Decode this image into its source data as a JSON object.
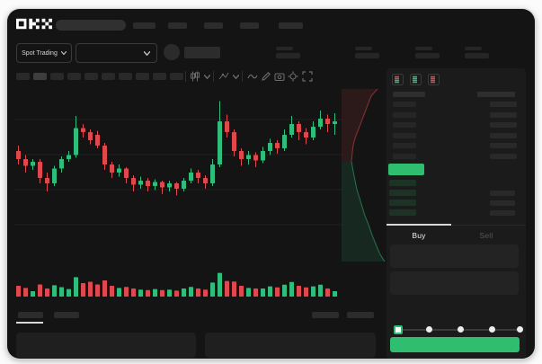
{
  "app": {
    "name": "OKX trading terminal",
    "theme": "dark"
  },
  "colors": {
    "window_bg": "#141414",
    "orderbook_bg": "#1b1b1b",
    "up_green": "#2ebd7b",
    "down_red": "#e0484e",
    "button_green": "#2fbd70",
    "placeholder_bar": "#2c2c2c",
    "tab_underline": "#d8d8d8"
  },
  "header": {
    "logo": "OKX",
    "nav_item_count": 5
  },
  "subheader": {
    "market_type_selector": {
      "label": "Spot Trading"
    },
    "pair_selector": {
      "selected_label": ""
    },
    "ticker_stat_count": 4
  },
  "chart_toolbar": {
    "timeframe_button_count": 10,
    "active_timeframe_index": 1,
    "icons": [
      "candle-style",
      "overlay-picker",
      "indicator-wave",
      "draw-pencil",
      "camera-snapshot",
      "settings-gear",
      "fullscreen-expand"
    ]
  },
  "order_book": {
    "view_mode_icons": [
      "book-combined",
      "book-bids-only",
      "book-asks-only"
    ],
    "ask_row_count": 6,
    "bid_row_count": 4,
    "last_price_highlighted": true
  },
  "trade_panel": {
    "tabs": [
      {
        "label": "Buy",
        "active": true
      },
      {
        "label": "Sell",
        "active": false
      }
    ],
    "input_field_count": 2,
    "amount_slider": {
      "stop_count": 5,
      "active_stop_index": 0
    },
    "submit_button": {
      "color": "#2fbd70"
    }
  },
  "bottom_bar": {
    "left_tab_count": 2,
    "active_tab_index": 0,
    "right_tab_count": 2,
    "panel_count": 2
  },
  "chart_data": {
    "type": "candlestick",
    "grid": true,
    "up_color": "#2ebd7b",
    "down_color": "#e0484e",
    "value_scale": [
      0,
      100
    ],
    "candles": [
      [
        58,
        62,
        48,
        52
      ],
      [
        52,
        55,
        42,
        47
      ],
      [
        47,
        52,
        44,
        50
      ],
      [
        50,
        52,
        34,
        38
      ],
      [
        38,
        42,
        28,
        34
      ],
      [
        34,
        47,
        32,
        45
      ],
      [
        45,
        54,
        42,
        52
      ],
      [
        52,
        58,
        50,
        55
      ],
      [
        55,
        84,
        53,
        75
      ],
      [
        75,
        78,
        68,
        72
      ],
      [
        72,
        74,
        63,
        66
      ],
      [
        70,
        73,
        60,
        62
      ],
      [
        62,
        64,
        44,
        48
      ],
      [
        48,
        50,
        38,
        42
      ],
      [
        42,
        48,
        39,
        45
      ],
      [
        45,
        46,
        34,
        38
      ],
      [
        38,
        40,
        28,
        33
      ],
      [
        33,
        39,
        30,
        36
      ],
      [
        36,
        38,
        28,
        32
      ],
      [
        32,
        37,
        29,
        35
      ],
      [
        35,
        36,
        26,
        31
      ],
      [
        31,
        36,
        28,
        34
      ],
      [
        34,
        35,
        25,
        30
      ],
      [
        30,
        38,
        28,
        36
      ],
      [
        36,
        45,
        34,
        42
      ],
      [
        42,
        44,
        34,
        38
      ],
      [
        38,
        40,
        30,
        34
      ],
      [
        34,
        52,
        32,
        48
      ],
      [
        48,
        95,
        46,
        80
      ],
      [
        80,
        85,
        68,
        72
      ],
      [
        72,
        74,
        54,
        58
      ],
      [
        58,
        60,
        47,
        52
      ],
      [
        52,
        58,
        48,
        55
      ],
      [
        55,
        57,
        46,
        51
      ],
      [
        51,
        61,
        49,
        58
      ],
      [
        58,
        67,
        55,
        64
      ],
      [
        64,
        66,
        56,
        60
      ],
      [
        60,
        74,
        58,
        70
      ],
      [
        70,
        84,
        68,
        78
      ],
      [
        78,
        80,
        66,
        72
      ],
      [
        72,
        75,
        63,
        68
      ],
      [
        68,
        80,
        66,
        76
      ],
      [
        76,
        88,
        74,
        82
      ],
      [
        82,
        85,
        72,
        78
      ],
      [
        78,
        86,
        70,
        80
      ]
    ],
    "volume": [
      40,
      32,
      20,
      45,
      30,
      42,
      35,
      28,
      72,
      50,
      55,
      45,
      60,
      40,
      32,
      36,
      30,
      26,
      24,
      28,
      24,
      26,
      22,
      30,
      36,
      30,
      26,
      52,
      88,
      58,
      56,
      40,
      32,
      30,
      30,
      38,
      34,
      44,
      54,
      40,
      34,
      38,
      44,
      30,
      20
    ],
    "depth": {
      "type": "area-vertical",
      "asks_color": "#e0484e",
      "bids_color": "#2ebd7b",
      "asks_curve": [
        [
          0.8,
          0.02
        ],
        [
          0.66,
          0.06
        ],
        [
          0.6,
          0.1
        ],
        [
          0.54,
          0.14
        ],
        [
          0.48,
          0.18
        ],
        [
          0.42,
          0.22
        ],
        [
          0.36,
          0.26
        ],
        [
          0.3,
          0.3
        ],
        [
          0.26,
          0.34
        ],
        [
          0.24,
          0.38
        ],
        [
          0.22,
          0.43
        ]
      ],
      "bids_curve": [
        [
          0.22,
          0.43
        ],
        [
          0.26,
          0.49
        ],
        [
          0.3,
          0.54
        ],
        [
          0.34,
          0.59
        ],
        [
          0.4,
          0.64
        ],
        [
          0.46,
          0.69
        ],
        [
          0.52,
          0.74
        ],
        [
          0.6,
          0.79
        ],
        [
          0.68,
          0.85
        ],
        [
          0.76,
          0.9
        ],
        [
          0.84,
          0.95
        ],
        [
          0.92,
          0.985
        ],
        [
          0.96,
          1.0
        ]
      ]
    }
  }
}
